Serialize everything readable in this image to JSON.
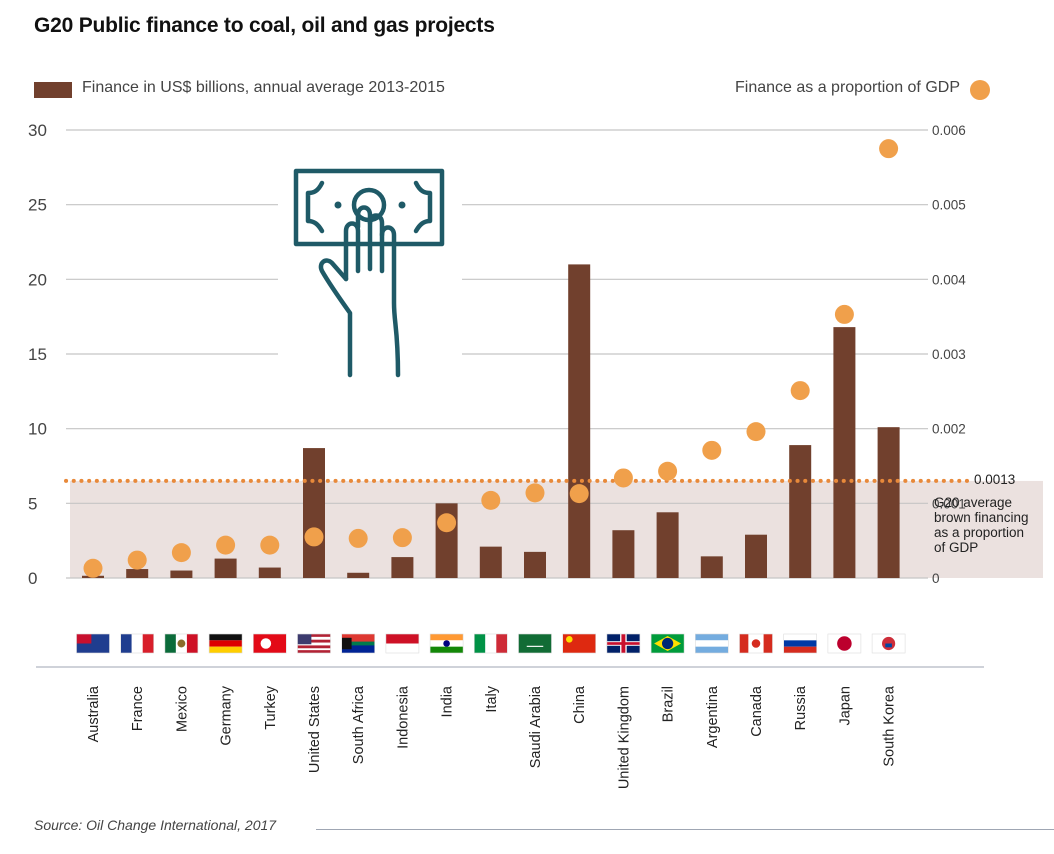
{
  "title": "G20 Public finance to coal, oil and gas projects",
  "legend": {
    "bar_label": "Finance in US$ billions, annual average 2013-2015",
    "dot_label": "Finance as a proportion of GDP"
  },
  "average": {
    "value_label": "0.0013",
    "note": "G20 average\nbrown financing\nas a proportion\nof GDP"
  },
  "source": "Source: Oil Change International, 2017",
  "icon": "money-hand-icon",
  "colors": {
    "bar": "#71402d",
    "dot": "#f0a04b",
    "average_band": "#ebe1df",
    "gridline": "#c5c5c5"
  },
  "chart_data": {
    "type": "bar",
    "categories": [
      "Australia",
      "France",
      "Mexico",
      "Germany",
      "Turkey",
      "United States",
      "South Africa",
      "Indonesia",
      "India",
      "Italy",
      "Saudi Arabia",
      "China",
      "United Kingdom",
      "Brazil",
      "Argentina",
      "Canada",
      "Russia",
      "Japan",
      "South Korea"
    ],
    "series": [
      {
        "name": "Finance in US$ billions, annual average 2013-2015",
        "axis": "left",
        "type": "bar",
        "values": [
          0.15,
          0.6,
          0.5,
          1.3,
          0.7,
          8.7,
          0.35,
          1.4,
          5.0,
          2.1,
          1.75,
          21.0,
          3.2,
          4.4,
          1.45,
          2.9,
          8.9,
          16.8,
          10.1
        ]
      },
      {
        "name": "Finance as a proportion of GDP",
        "axis": "right",
        "type": "scatter",
        "values": [
          0.00013,
          0.00024,
          0.00034,
          0.00044,
          0.00044,
          0.00055,
          0.00053,
          0.00054,
          0.00074,
          0.00104,
          0.00114,
          0.00113,
          0.00134,
          0.00143,
          0.00171,
          0.00196,
          0.00251,
          0.00353,
          0.00575
        ]
      }
    ],
    "average_line": {
      "value": 0.0013,
      "axis": "right"
    },
    "y_left": {
      "ylim": [
        0,
        30
      ],
      "ticks": [
        "0",
        "5",
        "10",
        "15",
        "20",
        "25",
        "30"
      ]
    },
    "y_right": {
      "ylim": [
        0,
        0.006
      ],
      "ticks": [
        "0",
        "0.001",
        "0.002",
        "0.003",
        "0.004",
        "0.005",
        "0.006"
      ]
    },
    "grid": true
  }
}
